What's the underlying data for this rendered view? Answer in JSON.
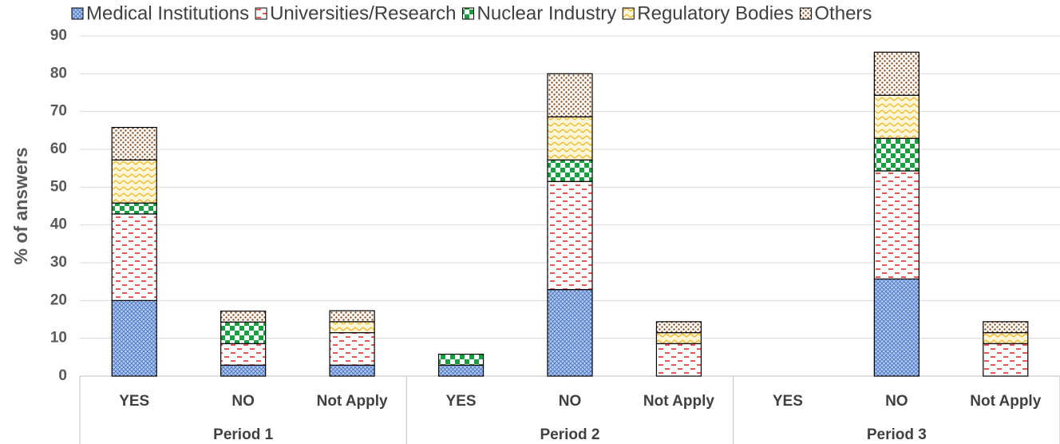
{
  "chart_data": {
    "type": "stacked_bar",
    "y_label": "% of answers",
    "categories": [
      "YES",
      "NO",
      "Not Apply",
      "YES",
      "NO",
      "Not Apply",
      "YES",
      "NO",
      "Not Apply"
    ],
    "groups": [
      "Period 1",
      "Period 2",
      "Period 3"
    ],
    "series": [
      {
        "name": "Medical Institutions",
        "color": "#4472c4",
        "pattern": "crosshatch",
        "values": [
          20,
          2.9,
          2.9,
          2.9,
          22.9,
          0,
          0,
          25.7,
          0
        ]
      },
      {
        "name": "Universities/Research",
        "color": "#e0201b",
        "pattern": "dashes",
        "values": [
          22.9,
          5.7,
          8.6,
          0,
          28.6,
          8.6,
          0,
          28.6,
          8.6
        ]
      },
      {
        "name": "Nuclear Industry",
        "color": "#18a040",
        "pattern": "checker",
        "values": [
          2.9,
          5.7,
          0,
          2.9,
          5.7,
          0,
          0,
          8.6,
          0
        ]
      },
      {
        "name": "Regulatory Bodies",
        "color": "#f0b020",
        "pattern": "zigzag",
        "values": [
          11.4,
          0,
          2.9,
          0,
          11.4,
          2.9,
          0,
          11.4,
          2.9
        ]
      },
      {
        "name": "Others",
        "color": "#8b4a1c",
        "pattern": "dots",
        "values": [
          8.6,
          2.9,
          2.9,
          0,
          11.4,
          2.9,
          0,
          11.4,
          2.9
        ]
      }
    ],
    "ylim": [
      0,
      90
    ],
    "yticks": [
      0,
      10,
      20,
      30,
      40,
      50,
      60,
      70,
      80,
      90
    ],
    "grid": true,
    "legend": "top"
  }
}
